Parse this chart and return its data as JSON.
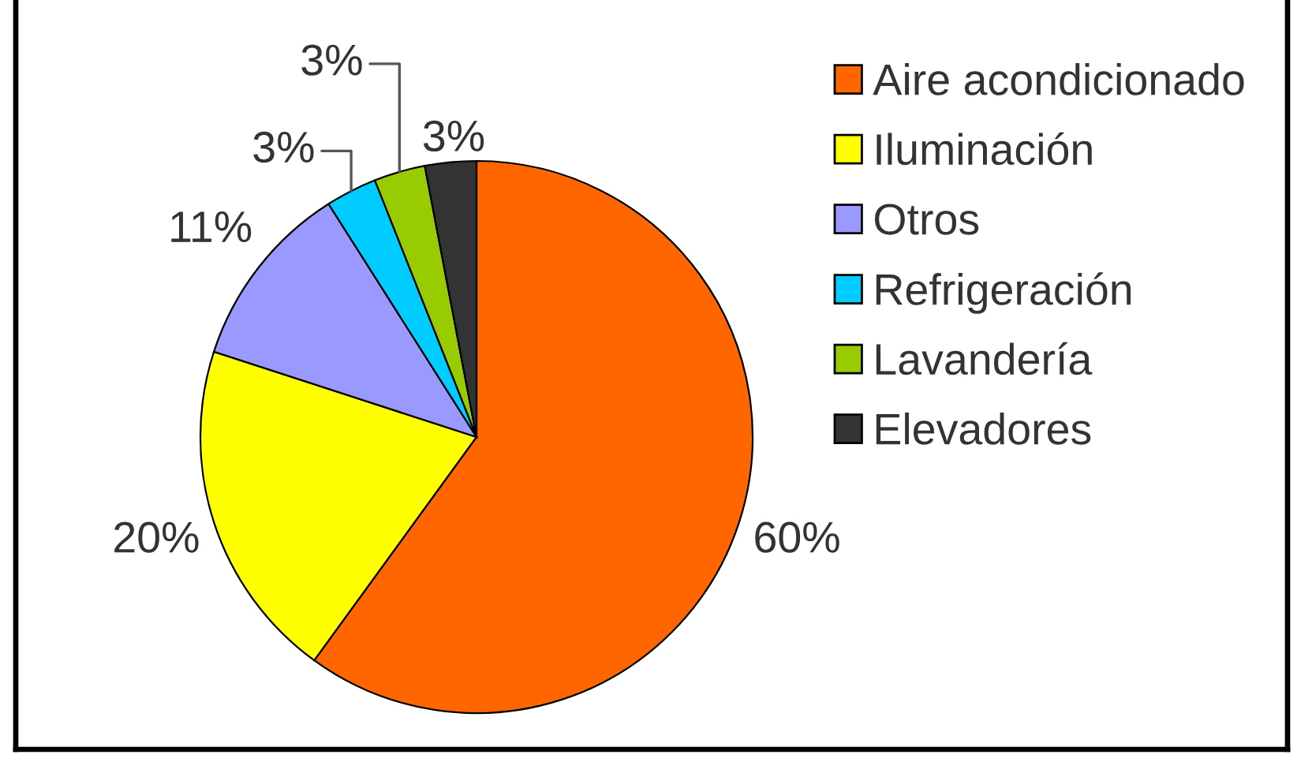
{
  "chart_data": {
    "type": "pie",
    "categories": [
      "Aire acondicionado",
      "Iluminación",
      "Otros",
      "Refrigeración",
      "Lavandería",
      "Elevadores"
    ],
    "values": [
      60,
      20,
      11,
      3,
      3,
      3
    ],
    "colors": [
      "#ff6600",
      "#ffff00",
      "#9999ff",
      "#00ccff",
      "#99cc00",
      "#333333"
    ],
    "value_labels": [
      "60%",
      "20%",
      "11%",
      "3%",
      "3%",
      "3%"
    ],
    "legend": "right"
  }
}
